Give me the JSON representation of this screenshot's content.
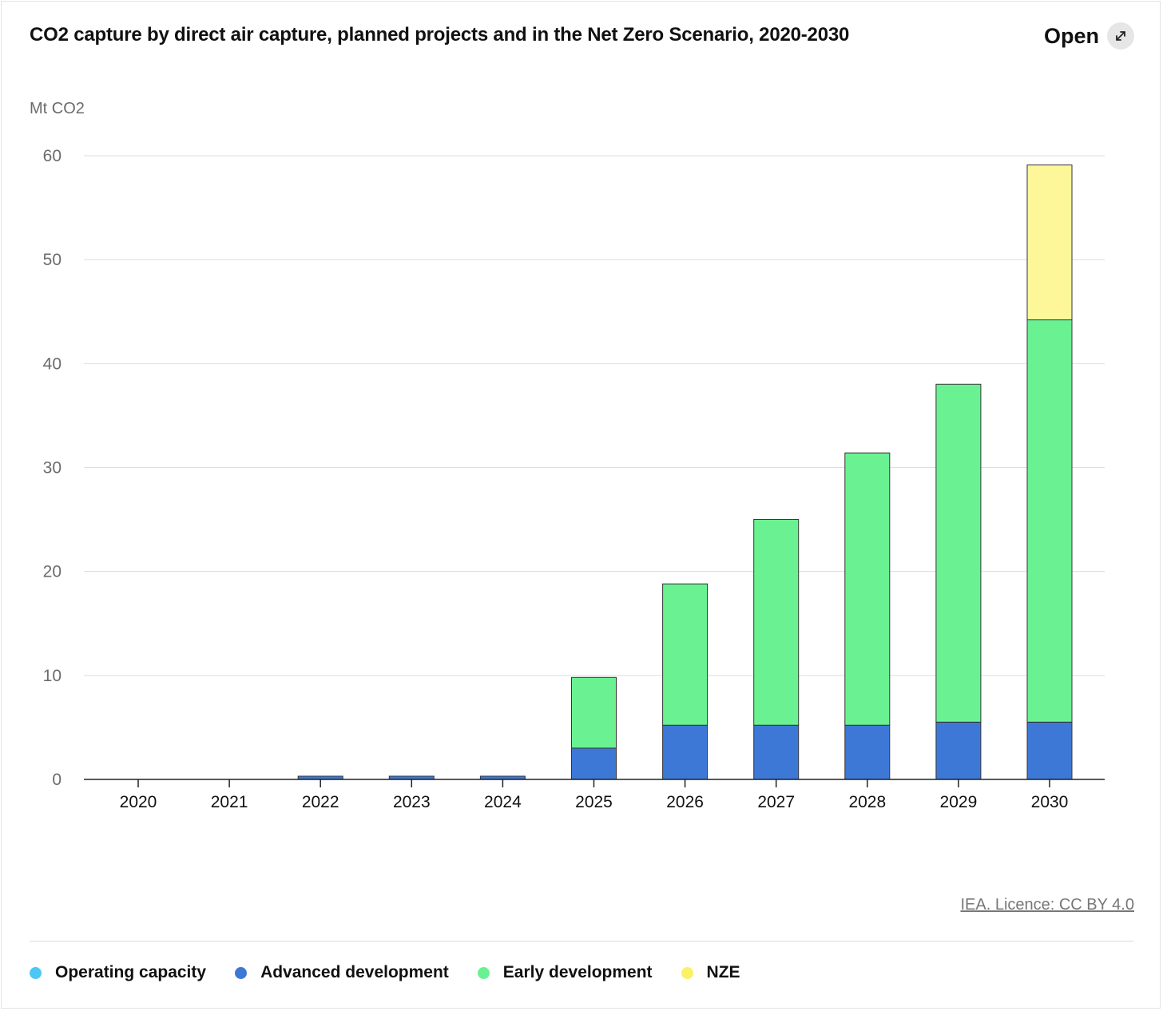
{
  "title": "CO2 capture by direct air capture, planned projects and in the Net Zero Scenario, 2020-2030",
  "open_label": "Open",
  "licence": "IEA. Licence: CC BY 4.0",
  "colors": {
    "operating": "#4dc7f5",
    "advanced": "#3d78d6",
    "early": "#6af292",
    "nze": "#fdf79a",
    "nze_dot": "#faf165",
    "bar_stroke": "#333333",
    "grid": "#dddddd",
    "axis": "#222222"
  },
  "chart_data": {
    "type": "bar",
    "stacked": true,
    "title": "CO2 capture by direct air capture, planned projects and in the Net Zero Scenario, 2020-2030",
    "ylabel": "Mt CO2",
    "xlabel": "",
    "ylim": [
      0,
      60
    ],
    "yticks": [
      0,
      10,
      20,
      30,
      40,
      50,
      60
    ],
    "grid": true,
    "legend_position": "bottom",
    "categories": [
      "2020",
      "2021",
      "2022",
      "2023",
      "2024",
      "2025",
      "2026",
      "2027",
      "2028",
      "2029",
      "2030"
    ],
    "series": [
      {
        "name": "Operating capacity",
        "color_key": "operating",
        "values": [
          0.01,
          0.01,
          0.01,
          0.01,
          0.01,
          0.01,
          0.01,
          0.01,
          0.01,
          0.01,
          0.01
        ]
      },
      {
        "name": "Advanced development",
        "color_key": "advanced",
        "values": [
          0,
          0,
          0.3,
          0.3,
          0.3,
          3.0,
          5.2,
          5.2,
          5.2,
          5.5,
          5.5
        ]
      },
      {
        "name": "Early development",
        "color_key": "early",
        "values": [
          0,
          0,
          0,
          0,
          0,
          6.8,
          13.6,
          19.8,
          26.2,
          32.5,
          38.7
        ]
      },
      {
        "name": "NZE",
        "color_key": "nze",
        "values": [
          0,
          0,
          0,
          0,
          0,
          0,
          0,
          0,
          0,
          0,
          14.9
        ]
      }
    ]
  },
  "legend": [
    {
      "label": "Operating capacity",
      "color_key": "operating"
    },
    {
      "label": "Advanced development",
      "color_key": "advanced"
    },
    {
      "label": "Early development",
      "color_key": "early"
    },
    {
      "label": "NZE",
      "color_key": "nze_dot"
    }
  ]
}
